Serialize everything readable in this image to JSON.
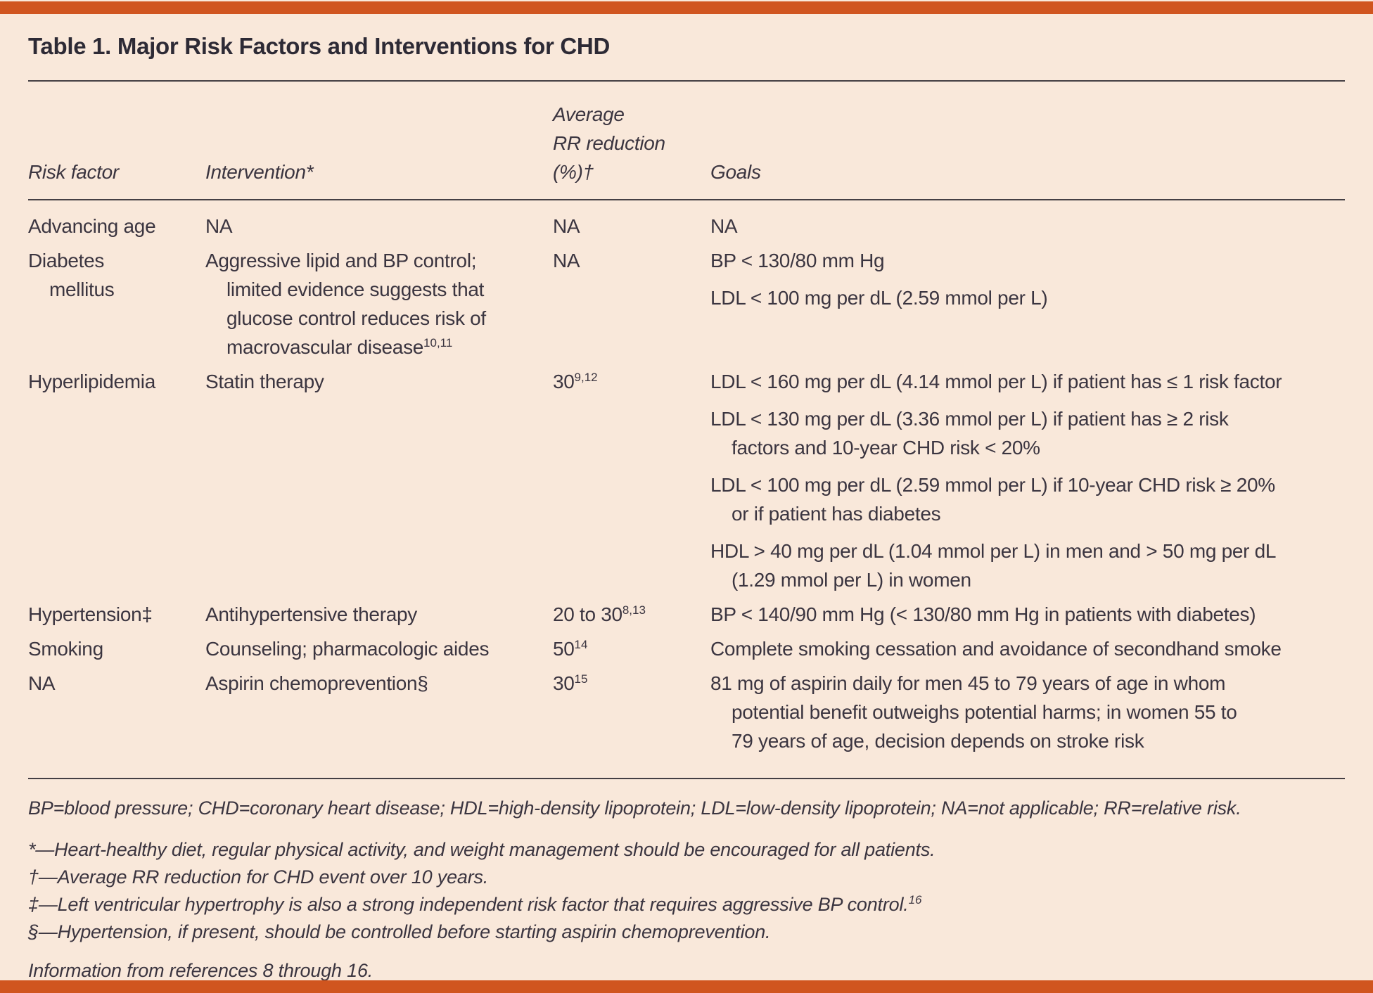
{
  "title": "Table 1. Major Risk Factors and Interventions for CHD",
  "colors": {
    "accent_bar": "#d0551f",
    "background": "#f9e8da",
    "text": "#3b3540"
  },
  "table": {
    "header": {
      "risk_factor": "Risk factor",
      "intervention": "Intervention*",
      "rr_lines": [
        "Average",
        "RR reduction",
        "(%)†"
      ],
      "goals": "Goals"
    },
    "rows": [
      {
        "risk_factor": [
          "Advancing age"
        ],
        "intervention": [
          "NA"
        ],
        "rr": {
          "value": "NA",
          "sup": ""
        },
        "goals": [
          [
            "NA"
          ]
        ]
      },
      {
        "risk_factor": [
          "Diabetes",
          "mellitus"
        ],
        "intervention": [
          "Aggressive lipid and BP control;",
          "limited evidence suggests that",
          "glucose control reduces risk of",
          "macrovascular disease"
        ],
        "intervention_sup": "10,11",
        "rr": {
          "value": "NA",
          "sup": ""
        },
        "goals": [
          [
            "BP < 130/80 mm Hg"
          ],
          [
            "LDL < 100 mg per dL (2.59 mmol per L)"
          ]
        ]
      },
      {
        "risk_factor": [
          "Hyperlipidemia"
        ],
        "intervention": [
          "Statin therapy"
        ],
        "rr": {
          "value": "30",
          "sup": "9,12"
        },
        "goals": [
          [
            "LDL < 160 mg per dL (4.14 mmol per L) if patient has ≤ 1 risk factor"
          ],
          [
            "LDL < 130 mg per dL (3.36 mmol per L) if patient has ≥ 2 risk",
            "factors and 10-year CHD risk < 20%"
          ],
          [
            "LDL < 100 mg per dL (2.59 mmol per L) if 10-year CHD risk ≥ 20%",
            "or if patient has diabetes"
          ],
          [
            "HDL > 40 mg per dL (1.04 mmol per L) in men and > 50 mg per dL",
            "(1.29 mmol per L) in women"
          ]
        ]
      },
      {
        "risk_factor": [
          "Hypertension‡"
        ],
        "intervention": [
          "Antihypertensive therapy"
        ],
        "rr": {
          "value": "20 to 30",
          "sup": "8,13"
        },
        "goals": [
          [
            "BP < 140/90 mm Hg (< 130/80 mm Hg in patients with diabetes)"
          ]
        ]
      },
      {
        "risk_factor": [
          "Smoking"
        ],
        "intervention": [
          "Counseling; pharmacologic aides"
        ],
        "rr": {
          "value": "50",
          "sup": "14"
        },
        "goals": [
          [
            "Complete smoking cessation and avoidance of secondhand smoke"
          ]
        ]
      },
      {
        "risk_factor": [
          "NA"
        ],
        "intervention": [
          "Aspirin chemoprevention§"
        ],
        "rr": {
          "value": "30",
          "sup": "15"
        },
        "goals": [
          [
            "81 mg of aspirin daily for men 45 to 79 years of age in whom",
            "potential benefit outweighs potential harms; in women 55 to",
            "79 years of age, decision depends on stroke risk"
          ]
        ]
      }
    ]
  },
  "footnotes": {
    "abbreviations": "BP=blood pressure; CHD=coronary heart disease; HDL=high-density lipoprotein; LDL=low-density lipoprotein; NA=not applicable; RR=relative risk.",
    "star": "*—Heart-healthy diet, regular physical activity, and weight management should be encouraged for all patients.",
    "dagger": "†—Average RR reduction for CHD event over 10 years.",
    "double_dagger": "‡—Left ventricular hypertrophy is also a strong independent risk factor that requires aggressive BP control.",
    "double_dagger_sup": "16",
    "section": "§—Hypertension, if present, should be controlled before starting aspirin chemoprevention.",
    "source": "Information from references 8 through 16."
  }
}
